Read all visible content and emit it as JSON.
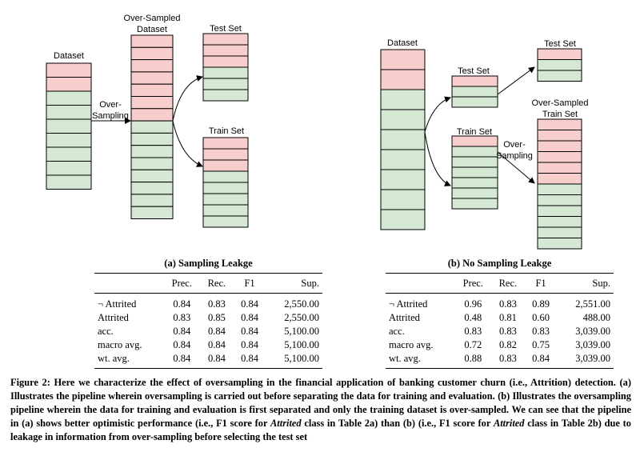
{
  "colors": {
    "minority": "#f8cecc",
    "majority": "#d5e8d4",
    "stroke": "#000000"
  },
  "diagram_a": {
    "dataset_label": "Dataset",
    "oversampled_label_line1": "Over-Sampled",
    "oversampled_label_line2": "Dataset",
    "oversampling_label_line1": "Over-",
    "oversampling_label_line2": "Sampling",
    "test_label": "Test Set",
    "train_label": "Train Set"
  },
  "diagram_b": {
    "dataset_label": "Dataset",
    "test_label": "Test Set",
    "train_label": "Train Set",
    "test_out_label": "Test Set",
    "oversampled_label_line1": "Over-Sampled",
    "oversampled_label_line2": "Train Set",
    "oversampling_label_line1": "Over-",
    "oversampling_label_line2": "Sampling"
  },
  "table_a": {
    "title": "(a) Sampling Leakge",
    "headers": [
      "",
      "Prec.",
      "Rec.",
      "F1",
      "Sup."
    ],
    "rows": [
      [
        "¬ Attrited",
        "0.84",
        "0.83",
        "0.84",
        "2,550.00"
      ],
      [
        "Attrited",
        "0.83",
        "0.85",
        "0.84",
        "2,550.00"
      ],
      [
        "acc.",
        "0.84",
        "0.84",
        "0.84",
        "5,100.00"
      ],
      [
        "macro avg.",
        "0.84",
        "0.84",
        "0.84",
        "5,100.00"
      ],
      [
        "wt. avg.",
        "0.84",
        "0.84",
        "0.84",
        "5,100.00"
      ]
    ]
  },
  "table_b": {
    "title": "(b) No Sampling Leakge",
    "headers": [
      "",
      "Prec.",
      "Rec.",
      "F1",
      "Sup."
    ],
    "rows": [
      [
        "¬ Attrited",
        "0.96",
        "0.83",
        "0.89",
        "2,551.00"
      ],
      [
        "Attrited",
        "0.48",
        "0.81",
        "0.60",
        "488.00"
      ],
      [
        "acc.",
        "0.83",
        "0.83",
        "0.83",
        "3,039.00"
      ],
      [
        "macro avg.",
        "0.72",
        "0.82",
        "0.75",
        "3,039.00"
      ],
      [
        "wt. avg.",
        "0.88",
        "0.83",
        "0.84",
        "3,039.00"
      ]
    ]
  },
  "caption": {
    "part1": "Figure 2: Here we characterize the effect of oversampling in the financial application of banking customer churn (i.e., Attrition) detection. (a) Illustrates the pipeline wherein oversampling is carried out before separating the data for training and evaluation. (b) Illustrates the oversampling pipeline wherein the data for training and evaluation is first separated and only the training dataset is over-sampled. We can see that the pipeline in (a) shows better optimistic performance (i.e., F1 score for ",
    "em1": "Attrited",
    "part2": " class in Table 2a) than (b) (i.e., F1 score for ",
    "em2": "Attrited",
    "part3": " class in Table 2b) due to leakage in information from over-sampling before selecting the test set"
  }
}
